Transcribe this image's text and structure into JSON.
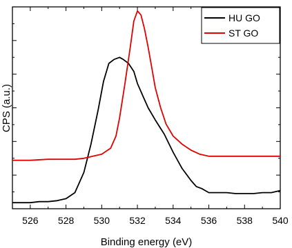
{
  "chart_data": {
    "type": "line",
    "title": "",
    "xlabel": "Binding energy (eV)",
    "ylabel": "CPS (a.u.)",
    "xlim": [
      525,
      540
    ],
    "ylim": [
      0,
      1
    ],
    "x_ticks": [
      526,
      528,
      530,
      532,
      534,
      536,
      538,
      540
    ],
    "y_ticks_labeled": false,
    "grid": false,
    "legend_position": "top-right",
    "series": [
      {
        "name": "HU GO",
        "color": "#000000",
        "x": [
          525.0,
          525.5,
          526.0,
          526.5,
          527.0,
          527.5,
          528.0,
          528.5,
          529.0,
          529.4,
          529.8,
          530.1,
          530.4,
          530.7,
          531.0,
          531.2,
          531.5,
          531.8,
          532.0,
          532.3,
          532.6,
          533.0,
          533.5,
          534.0,
          534.5,
          535.0,
          535.3,
          535.6,
          536.0,
          536.5,
          537.0,
          537.5,
          538.0,
          538.5,
          539.0,
          539.5,
          540.0
        ],
        "values": [
          0.03,
          0.03,
          0.03,
          0.035,
          0.035,
          0.04,
          0.05,
          0.08,
          0.18,
          0.32,
          0.49,
          0.63,
          0.72,
          0.74,
          0.75,
          0.74,
          0.72,
          0.68,
          0.62,
          0.56,
          0.5,
          0.44,
          0.37,
          0.28,
          0.2,
          0.14,
          0.11,
          0.1,
          0.08,
          0.08,
          0.08,
          0.075,
          0.075,
          0.075,
          0.08,
          0.08,
          0.09
        ]
      },
      {
        "name": "ST GO",
        "color": "#e00000",
        "x": [
          525.0,
          526.0,
          527.0,
          528.0,
          528.5,
          529.0,
          529.5,
          530.0,
          530.5,
          530.8,
          531.0,
          531.3,
          531.6,
          531.8,
          532.0,
          532.2,
          532.4,
          532.6,
          532.8,
          533.0,
          533.3,
          533.6,
          534.0,
          534.5,
          535.0,
          535.5,
          536.0,
          537.0,
          538.0,
          539.0,
          540.0
        ],
        "values": [
          0.24,
          0.24,
          0.245,
          0.245,
          0.245,
          0.25,
          0.26,
          0.27,
          0.3,
          0.36,
          0.45,
          0.62,
          0.8,
          0.93,
          0.98,
          0.96,
          0.89,
          0.8,
          0.7,
          0.6,
          0.5,
          0.42,
          0.36,
          0.32,
          0.29,
          0.27,
          0.26,
          0.26,
          0.26,
          0.26,
          0.26
        ]
      }
    ]
  }
}
